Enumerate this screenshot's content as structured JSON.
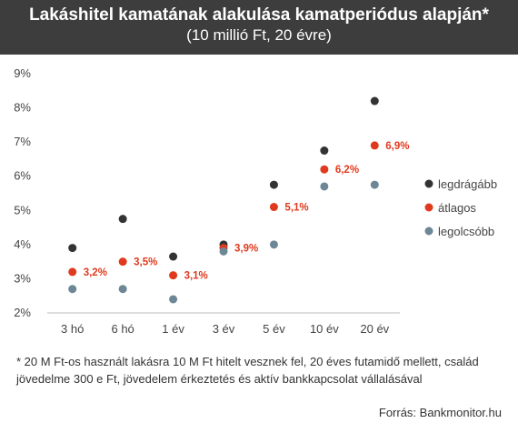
{
  "header": {
    "title": "Lakáshitel kamatának alakulása kamatperiódus alapján*",
    "subtitle": "(10 millió Ft, 20 évre)"
  },
  "chart_data": {
    "type": "scatter",
    "categories": [
      "3 hó",
      "6 hó",
      "1 év",
      "3 év",
      "5 év",
      "10 év",
      "20 év"
    ],
    "yticks": [
      "2%",
      "3%",
      "4%",
      "5%",
      "6%",
      "7%",
      "8%",
      "9%"
    ],
    "ylim": [
      2,
      9
    ],
    "grid": false,
    "legend_position": "right",
    "series": [
      {
        "name": "legdrágább",
        "color": "#333333",
        "values": [
          3.9,
          4.75,
          3.65,
          4.0,
          5.75,
          6.75,
          8.2
        ]
      },
      {
        "name": "átlagos",
        "color": "#e03a1e",
        "values": [
          3.2,
          3.5,
          3.1,
          3.9,
          5.1,
          6.2,
          6.9
        ],
        "labels": [
          "3,2%",
          "3,5%",
          "3,1%",
          "3,9%",
          "5,1%",
          "6,2%",
          "6,9%"
        ]
      },
      {
        "name": "legolcsóbb",
        "color": "#6d8796",
        "values": [
          2.7,
          2.7,
          2.4,
          3.8,
          4.0,
          5.7,
          5.75
        ]
      }
    ]
  },
  "footnote": "* 20 M Ft-os használt lakásra 10 M Ft hitelt vesznek fel, 20 éves futamidő mellett, család jövedelme 300 e Ft, jövedelem érkeztetés és aktív bankkapcsolat vállalásával",
  "source": "Forrás: Bankmonitor.hu"
}
